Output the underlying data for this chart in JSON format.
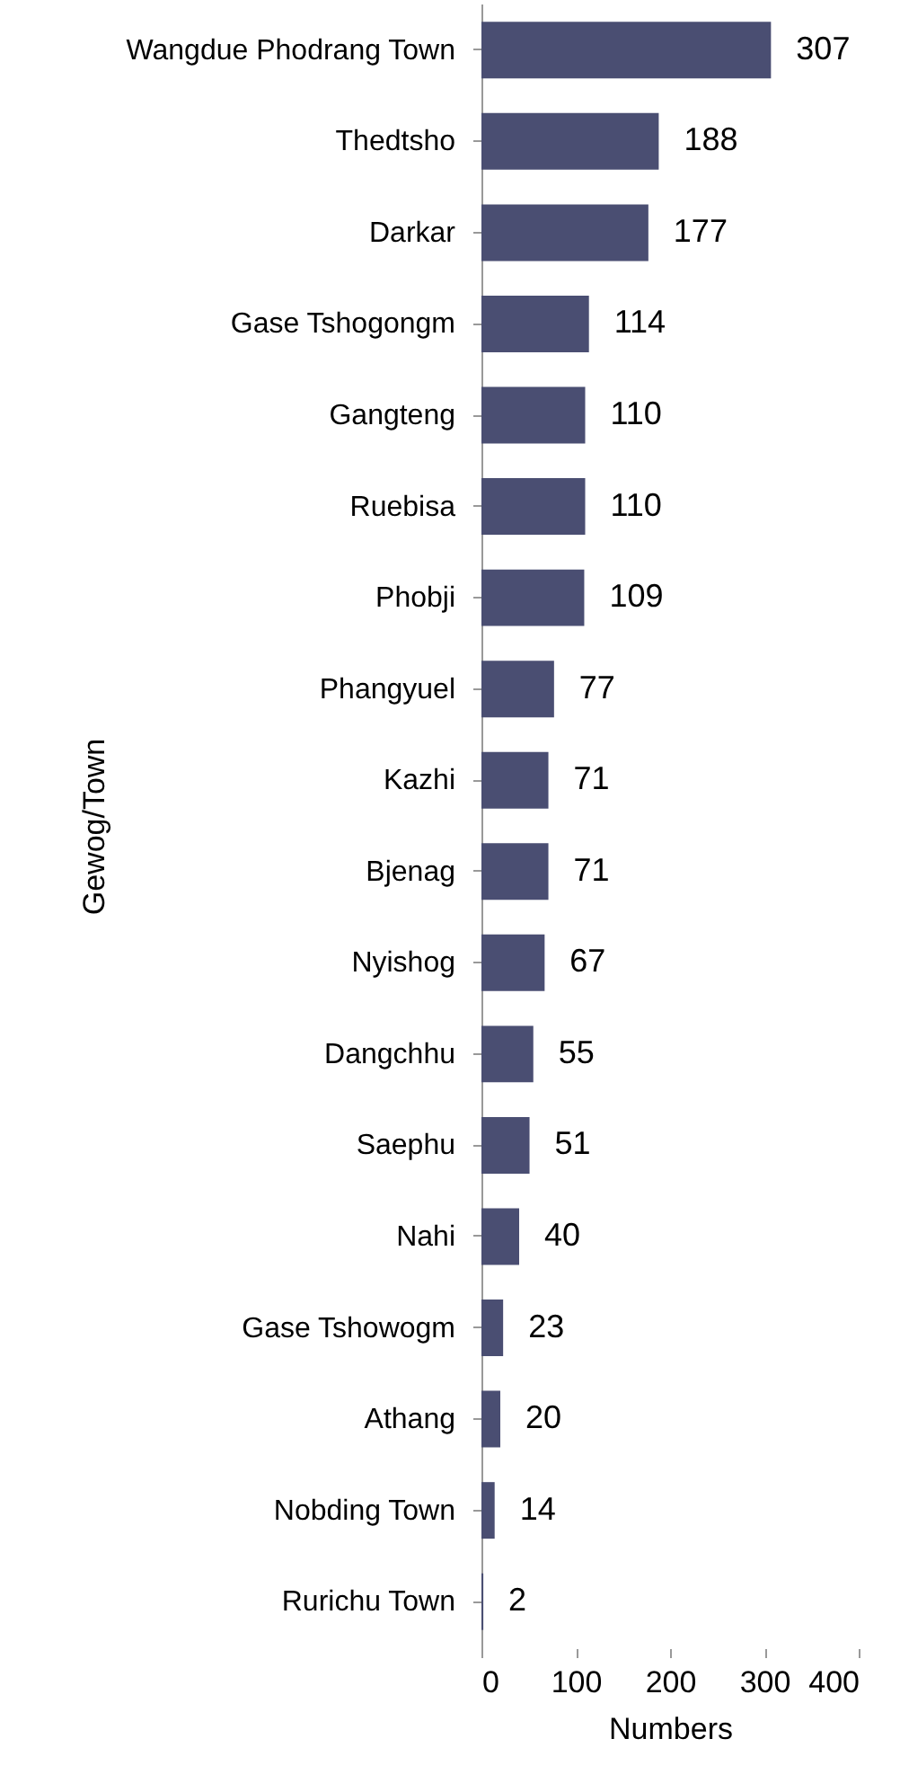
{
  "chart_data": {
    "type": "bar",
    "orientation": "horizontal",
    "xlabel": "Numbers",
    "ylabel": "Gewog/Town",
    "categories": [
      "Wangdue Phodrang Town",
      "Thedtsho",
      "Darkar",
      "Gase Tshogongm",
      "Gangteng",
      "Ruebisa",
      "Phobji",
      "Phangyuel",
      "Kazhi",
      "Bjenag",
      "Nyishog",
      "Dangchhu",
      "Saephu",
      "Nahi",
      "Gase Tshowogm",
      "Athang",
      "Nobding Town",
      "Rurichu Town"
    ],
    "values": [
      307,
      188,
      177,
      114,
      110,
      110,
      109,
      77,
      71,
      71,
      67,
      55,
      51,
      40,
      23,
      20,
      14,
      2
    ],
    "color": "#4a4e72",
    "xlim": [
      0,
      400
    ],
    "xticks": [
      0,
      100,
      200,
      300,
      400
    ],
    "data_labels": true,
    "grid": false
  }
}
